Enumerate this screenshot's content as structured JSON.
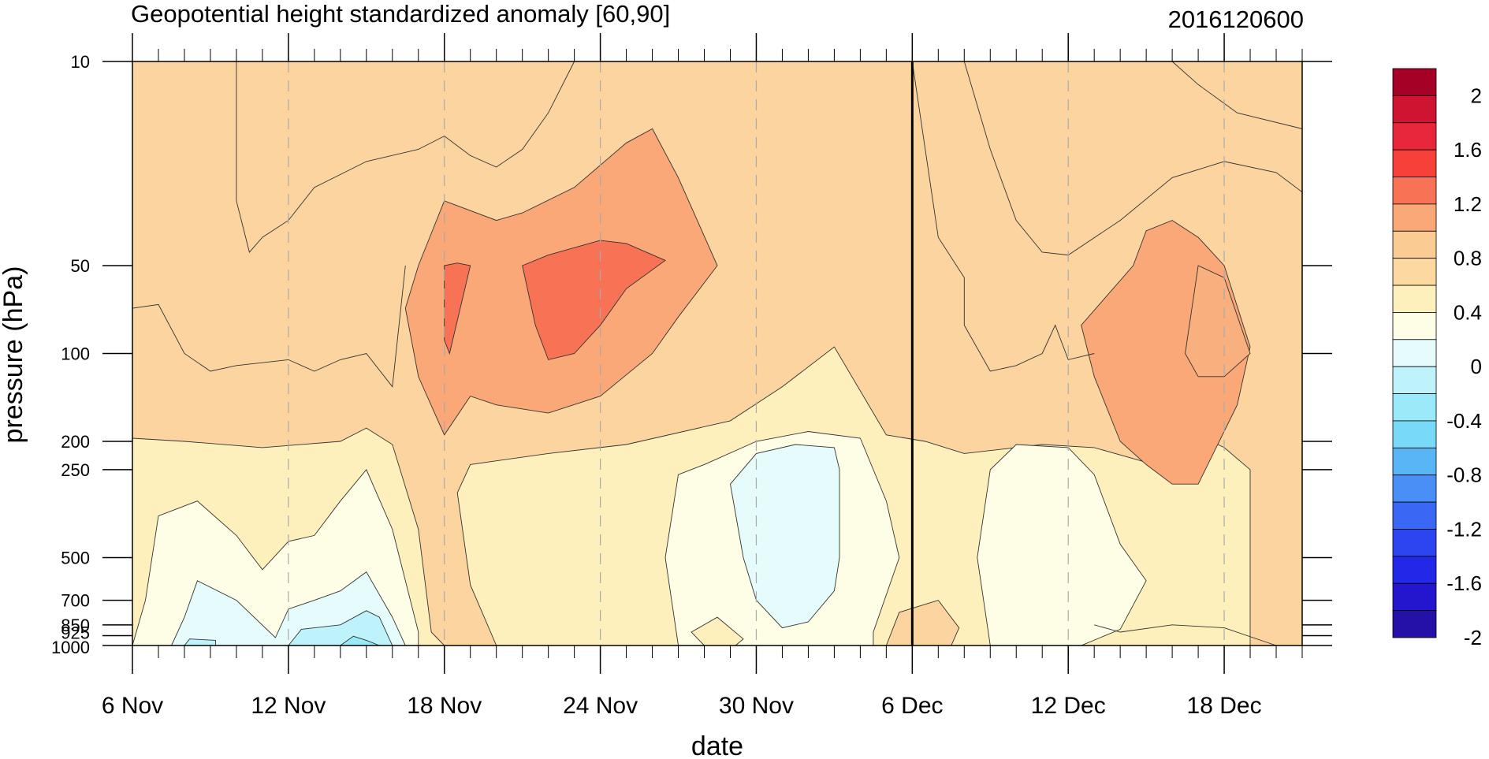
{
  "chart_data": {
    "type": "heatmap",
    "subtype": "filled-contour",
    "title": "Geopotential height standardized anomaly [60,90]",
    "date_label": "2016120600",
    "xlabel": "date",
    "ylabel": "pressure (hPa)",
    "x_start": "6 Nov",
    "x_end": "21 Dec",
    "x_ticks": [
      "6 Nov",
      "12 Nov",
      "18 Nov",
      "24 Nov",
      "30 Nov",
      "6 Dec",
      "12 Dec",
      "18 Dec"
    ],
    "y_ticks": [
      "10",
      "50",
      "100",
      "200",
      "250",
      "500",
      "700",
      "850",
      "925",
      "1000"
    ],
    "y_scale": "log",
    "y_reversed": true,
    "ylim": [
      1000,
      10
    ],
    "analysis_date_line": "6 Dec",
    "colorbar": {
      "labels": [
        "2",
        "1.6",
        "1.2",
        "0.8",
        "0.4",
        "0",
        "-0.4",
        "-0.8",
        "-1.2",
        "-1.6",
        "-2"
      ],
      "levels": [
        2.2,
        2.0,
        1.8,
        1.6,
        1.4,
        1.2,
        1.0,
        0.8,
        0.6,
        0.4,
        0.2,
        0.0,
        -0.2,
        -0.4,
        -0.6,
        -0.8,
        -1.0,
        -1.2,
        -1.4,
        -1.6,
        -1.8,
        -2.0,
        -2.2
      ],
      "colors": [
        "#a50026",
        "#cf1431",
        "#e8283a",
        "#f7403a",
        "#f87256",
        "#faa877",
        "#fbcb94",
        "#fcd9a0",
        "#fdf0bc",
        "#fefde5",
        "#e6fcfc",
        "#bff3fb",
        "#9beaf9",
        "#78daf7",
        "#5ab5f7",
        "#4a8ff6",
        "#3a68f5",
        "#2d45f0",
        "#2328e8",
        "#2416cf",
        "#2611a8"
      ]
    },
    "regions": [
      {
        "value": 0.7,
        "color": "#fbd4a0",
        "points": [
          [
            "6 Nov",
            1000
          ],
          [
            "6 Nov",
            10
          ],
          [
            "21 Dec",
            10
          ],
          [
            "21 Dec",
            1000
          ]
        ]
      },
      {
        "value": 0.3,
        "color": "#fdf0bc",
        "points": [
          [
            "6 Nov",
            1000
          ],
          [
            "6 Nov",
            195
          ],
          [
            "8 Nov",
            200
          ],
          [
            "11 Nov",
            210
          ],
          [
            "14 Nov",
            200
          ],
          [
            "15 Nov",
            180
          ],
          [
            "16 Nov",
            205
          ],
          [
            "17 Nov",
            400
          ],
          [
            "17.5 Nov",
            900
          ],
          [
            "18 Nov",
            1000
          ]
        ]
      },
      {
        "value": 0.3,
        "color": "#fdf0bc",
        "points": [
          [
            "20 Nov",
            1000
          ],
          [
            "19 Nov",
            620
          ],
          [
            "18.5 Nov",
            300
          ],
          [
            "19 Nov",
            240
          ],
          [
            "22 Nov",
            220
          ],
          [
            "25 Nov",
            205
          ],
          [
            "29 Nov",
            170
          ],
          [
            "31 Nov",
            130
          ],
          [
            "33 Nov",
            95
          ],
          [
            "35 Nov",
            190
          ],
          [
            "36.5 Nov",
            200
          ],
          [
            "38 Nov",
            220
          ],
          [
            "41 Nov",
            205
          ],
          [
            "43 Nov",
            210
          ],
          [
            "46 Nov",
            250
          ],
          [
            "47.5 Nov",
            200
          ],
          [
            "48 Nov",
            210
          ],
          [
            "49 Nov",
            250
          ],
          [
            "49 Nov",
            1000
          ]
        ]
      },
      {
        "value": 0.1,
        "color": "#fefde5",
        "points": [
          [
            "6 Nov",
            1000
          ],
          [
            "6.5 Nov",
            700
          ],
          [
            "7 Nov",
            360
          ],
          [
            "8.5 Nov",
            320
          ],
          [
            "10 Nov",
            420
          ],
          [
            "11 Nov",
            550
          ],
          [
            "12 Nov",
            440
          ],
          [
            "13 Nov",
            420
          ],
          [
            "14 Nov",
            320
          ],
          [
            "15 Nov",
            250
          ],
          [
            "16 Nov",
            400
          ],
          [
            "17 Nov",
            900
          ],
          [
            "17 Nov",
            1000
          ]
        ]
      },
      {
        "value": 0.1,
        "color": "#fefde5",
        "points": [
          [
            "27 Nov",
            1000
          ],
          [
            "26.5 Nov",
            500
          ],
          [
            "27 Nov",
            260
          ],
          [
            "28 Nov",
            240
          ],
          [
            "30 Nov",
            200
          ],
          [
            "32 Nov",
            185
          ],
          [
            "34 Nov",
            195
          ],
          [
            "35 Nov",
            320
          ],
          [
            "35.5 Nov",
            500
          ],
          [
            "34.5 Nov",
            900
          ],
          [
            "34.5 Nov",
            1000
          ]
        ]
      },
      {
        "value": 0.1,
        "color": "#fefde5",
        "points": [
          [
            "39 Nov",
            1000
          ],
          [
            "38.5 Nov",
            500
          ],
          [
            "39 Nov",
            250
          ],
          [
            "40 Nov",
            205
          ],
          [
            "42 Nov",
            210
          ],
          [
            "43 Nov",
            260
          ],
          [
            "44 Nov",
            450
          ],
          [
            "45 Nov",
            600
          ],
          [
            "44 Nov",
            880
          ],
          [
            "42.5 Nov",
            1000
          ]
        ]
      },
      {
        "value": 0.3,
        "color": "#fdf0bc",
        "points": [
          [
            "28 Nov",
            1000
          ],
          [
            "27.5 Nov",
            900
          ],
          [
            "28.5 Nov",
            800
          ],
          [
            "29.5 Nov",
            950
          ],
          [
            "29.2 Nov",
            1000
          ]
        ]
      },
      {
        "value": 0.7,
        "color": "#fbd4a0",
        "points": [
          [
            "35 Nov",
            1000
          ],
          [
            "35.5 Nov",
            770
          ],
          [
            "37 Nov",
            700
          ],
          [
            "37.8 Nov",
            870
          ],
          [
            "37.5 Nov",
            1000
          ]
        ]
      },
      {
        "value": -0.1,
        "color": "#e6fcfc",
        "points": [
          [
            "7.5 Nov",
            1000
          ],
          [
            "8 Nov",
            800
          ],
          [
            "8.5 Nov",
            600
          ],
          [
            "10 Nov",
            700
          ],
          [
            "11.5 Nov",
            940
          ],
          [
            "12 Nov",
            750
          ],
          [
            "13 Nov",
            700
          ],
          [
            "14 Nov",
            650
          ],
          [
            "15 Nov",
            560
          ],
          [
            "16 Nov",
            800
          ],
          [
            "16.5 Nov",
            1000
          ]
        ]
      },
      {
        "value": -0.3,
        "color": "#bff3fb",
        "points": [
          [
            "12 Nov",
            1000
          ],
          [
            "12.5 Nov",
            880
          ],
          [
            "14 Nov",
            850
          ],
          [
            "15 Nov",
            760
          ],
          [
            "15.5 Nov",
            800
          ],
          [
            "16 Nov",
            1000
          ]
        ]
      },
      {
        "value": -0.5,
        "color": "#9beaf9",
        "points": [
          [
            "14 Nov",
            1000
          ],
          [
            "14.5 Nov",
            930
          ],
          [
            "15 Nov",
            960
          ],
          [
            "15.5 Nov",
            1000
          ]
        ]
      },
      {
        "value": -0.3,
        "color": "#bff3fb",
        "points": [
          [
            "8 Nov",
            1000
          ],
          [
            "8.2 Nov",
            950
          ],
          [
            "9.2 Nov",
            960
          ],
          [
            "9.2 Nov",
            1000
          ]
        ]
      },
      {
        "value": -0.1,
        "color": "#e6fcfc",
        "points": [
          [
            "29 Nov",
            280
          ],
          [
            "30 Nov",
            220
          ],
          [
            "31.5 Nov",
            205
          ],
          [
            "33 Nov",
            210
          ],
          [
            "33.2 Nov",
            250
          ],
          [
            "33.2 Nov",
            500
          ],
          [
            "33 Nov",
            650
          ],
          [
            "32 Nov",
            830
          ],
          [
            "31 Nov",
            870
          ],
          [
            "30 Nov",
            700
          ],
          [
            "29.5 Nov",
            500
          ]
        ]
      },
      {
        "value": 0.9,
        "color": "#faa877",
        "points": [
          [
            "17 Nov",
            50
          ],
          [
            "18 Nov",
            30
          ],
          [
            "20 Nov",
            35
          ],
          [
            "21 Nov",
            33
          ],
          [
            "23 Nov",
            27
          ],
          [
            "25 Nov",
            19
          ],
          [
            "26 Nov",
            17
          ],
          [
            "27 Nov",
            25
          ],
          [
            "28.5 Nov",
            50
          ],
          [
            "27 Nov",
            75
          ],
          [
            "26 Nov",
            100
          ],
          [
            "24 Nov",
            140
          ],
          [
            "22 Nov",
            160
          ],
          [
            "20 Nov",
            150
          ],
          [
            "19 Nov",
            140
          ],
          [
            "18 Nov",
            190
          ],
          [
            "17 Nov",
            120
          ],
          [
            "16.5 Nov",
            70
          ]
        ]
      },
      {
        "value": 0.9,
        "color": "#faa877",
        "points": [
          [
            "44.5 Nov",
            50
          ],
          [
            "45 Nov",
            38
          ],
          [
            "46 Nov",
            35
          ],
          [
            "47 Nov",
            40
          ],
          [
            "48 Nov",
            50
          ],
          [
            "49 Nov",
            95
          ],
          [
            "48.5 Nov",
            150
          ],
          [
            "47 Nov",
            280
          ],
          [
            "46 Nov",
            280
          ],
          [
            "45 Nov",
            240
          ],
          [
            "44 Nov",
            200
          ],
          [
            "43 Nov",
            120
          ],
          [
            "42.5 Nov",
            80
          ]
        ]
      },
      {
        "value": 1.1,
        "color": "#f87256",
        "points": [
          [
            "18 Nov",
            50
          ],
          [
            "18.5 Nov",
            49
          ],
          [
            "19 Nov",
            50
          ],
          [
            "18.2 Nov",
            100
          ],
          [
            "18 Nov",
            90
          ]
        ]
      },
      {
        "value": 1.1,
        "color": "#f87256",
        "points": [
          [
            "21 Nov",
            50
          ],
          [
            "22 Nov",
            46
          ],
          [
            "24 Nov",
            41
          ],
          [
            "25 Nov",
            42
          ],
          [
            "26.5 Nov",
            48
          ],
          [
            "25 Nov",
            60
          ],
          [
            "24 Nov",
            80
          ],
          [
            "23 Nov",
            100
          ],
          [
            "22 Nov",
            105
          ],
          [
            "21.5 Nov",
            80
          ]
        ]
      },
      {
        "value": 1.1,
        "color": "#f9b07f",
        "points": [
          [
            "47 Nov",
            50
          ],
          [
            "48 Nov",
            55
          ],
          [
            "49 Nov",
            100
          ],
          [
            "48 Nov",
            120
          ],
          [
            "47 Nov",
            120
          ],
          [
            "46.5 Nov",
            100
          ]
        ]
      }
    ],
    "contours": [
      {
        "level": 0.4,
        "points": [
          [
            "10 Nov",
            10
          ],
          [
            "10 Nov",
            30
          ],
          [
            "10.5 Nov",
            45
          ],
          [
            "11 Nov",
            40
          ],
          [
            "12 Nov",
            35
          ],
          [
            "13 Nov",
            27
          ],
          [
            "15 Nov",
            22
          ],
          [
            "17 Nov",
            20
          ],
          [
            "18 Nov",
            18
          ],
          [
            "19 Nov",
            21
          ],
          [
            "20 Nov",
            23
          ],
          [
            "21 Nov",
            20
          ],
          [
            "22 Nov",
            15
          ],
          [
            "23 Nov",
            10
          ]
        ]
      },
      {
        "level": 0.4,
        "points": [
          [
            "6 Nov",
            70
          ],
          [
            "7 Nov",
            68
          ],
          [
            "8 Nov",
            100
          ],
          [
            "9 Nov",
            115
          ],
          [
            "10 Nov",
            110
          ],
          [
            "12 Nov",
            105
          ],
          [
            "13 Nov",
            115
          ],
          [
            "14 Nov",
            105
          ],
          [
            "15 Nov",
            100
          ],
          [
            "16 Nov",
            130
          ],
          [
            "16.5 Nov",
            50
          ]
        ]
      },
      {
        "level": 0.4,
        "points": [
          [
            "36 Nov",
            10
          ],
          [
            "37 Nov",
            40
          ],
          [
            "38 Nov",
            55
          ],
          [
            "38 Nov",
            80
          ],
          [
            "39 Nov",
            115
          ],
          [
            "40 Nov",
            110
          ],
          [
            "41 Nov",
            100
          ],
          [
            "41.5 Nov",
            80
          ],
          [
            "42 Nov",
            105
          ],
          [
            "43 Nov",
            100
          ]
        ]
      },
      {
        "level": 0.4,
        "points": [
          [
            "38 Nov",
            10
          ],
          [
            "39 Nov",
            20
          ],
          [
            "40 Nov",
            35
          ],
          [
            "41 Nov",
            45
          ],
          [
            "42 Nov",
            46
          ],
          [
            "44 Nov",
            35
          ],
          [
            "46 Nov",
            25
          ],
          [
            "48 Nov",
            22
          ],
          [
            "50 Nov",
            24
          ],
          [
            "51 Nov",
            28
          ]
        ]
      },
      {
        "level": 0.4,
        "points": [
          [
            "46 Nov",
            10
          ],
          [
            "47 Nov",
            12
          ],
          [
            "48.5 Nov",
            15
          ],
          [
            "51 Nov",
            17
          ]
        ]
      },
      {
        "level": 0.4,
        "points": [
          [
            "43 Nov",
            850
          ],
          [
            "44 Nov",
            900
          ],
          [
            "46 Nov",
            850
          ],
          [
            "48 Nov",
            870
          ],
          [
            "50 Nov",
            1000
          ]
        ]
      }
    ]
  }
}
